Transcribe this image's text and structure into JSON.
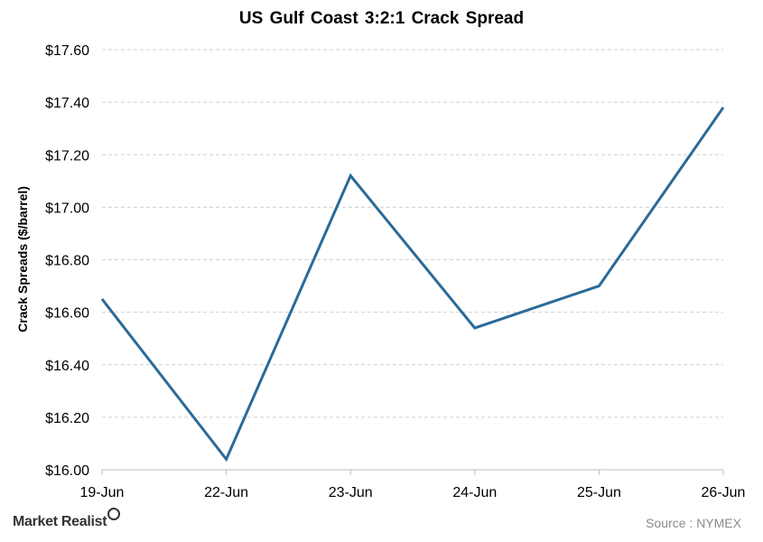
{
  "chart_data": {
    "type": "line",
    "title": "US Gulf Coast 3:2:1 Crack Spread",
    "xlabel": "",
    "ylabel": "Crack Spreads ($/barrel)",
    "categories": [
      "19-Jun",
      "22-Jun",
      "23-Jun",
      "24-Jun",
      "25-Jun",
      "26-Jun"
    ],
    "series": [
      {
        "values": [
          16.65,
          16.04,
          17.12,
          16.54,
          16.7,
          17.38
        ]
      }
    ],
    "ylim": [
      16.0,
      17.6
    ],
    "yticks": [
      "$16.00",
      "$16.20",
      "$16.40",
      "$16.60",
      "$16.80",
      "$17.00",
      "$17.20",
      "$17.40",
      "$17.60"
    ],
    "grid": true,
    "line_color": "#2a6a99"
  },
  "footer": {
    "brand": "Market Realist",
    "source": "Source : NYMEX"
  }
}
